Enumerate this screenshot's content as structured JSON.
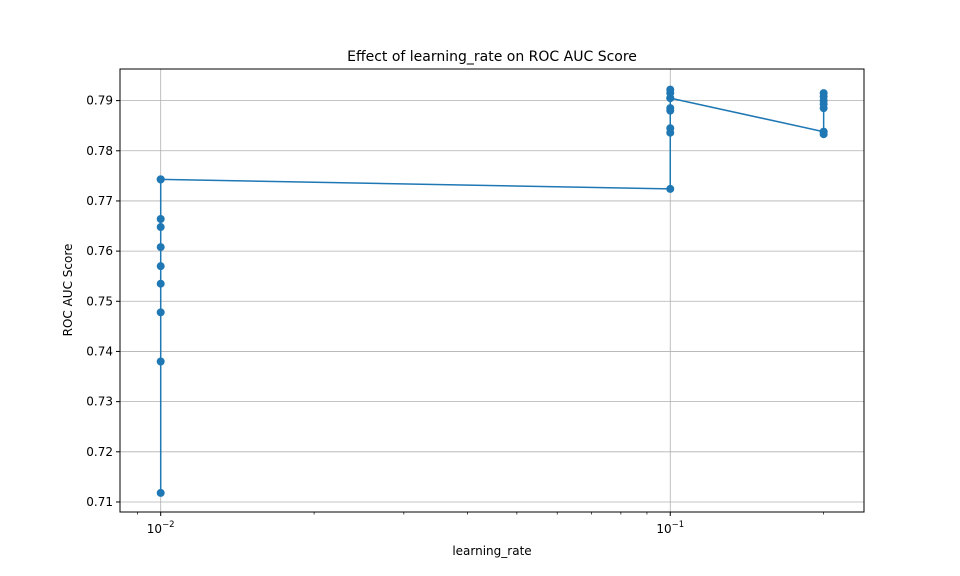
{
  "chart_data": {
    "type": "line",
    "title": "Effect of learning_rate on ROC AUC Score",
    "xlabel": "learning_rate",
    "ylabel": "ROC AUC Score",
    "xscale": "log",
    "grid": true,
    "xlim": [
      0.00832,
      0.24
    ],
    "ylim": [
      0.708,
      0.7963
    ],
    "x_ticks": [
      {
        "value": 0.01,
        "base": "10",
        "exp": "−2"
      },
      {
        "value": 0.1,
        "base": "10",
        "exp": "−1"
      }
    ],
    "y_ticks": [
      {
        "value": 0.71,
        "label": "0.71"
      },
      {
        "value": 0.72,
        "label": "0.72"
      },
      {
        "value": 0.73,
        "label": "0.73"
      },
      {
        "value": 0.74,
        "label": "0.74"
      },
      {
        "value": 0.75,
        "label": "0.75"
      },
      {
        "value": 0.76,
        "label": "0.76"
      },
      {
        "value": 0.77,
        "label": "0.77"
      },
      {
        "value": 0.78,
        "label": "0.78"
      },
      {
        "value": 0.79,
        "label": "0.79"
      }
    ],
    "series": [
      {
        "color": "#1f77b4",
        "x": [
          0.01,
          0.01,
          0.01,
          0.01,
          0.01,
          0.01,
          0.01,
          0.01,
          0.01,
          0.01,
          0.1,
          0.1,
          0.1,
          0.1,
          0.1,
          0.1,
          0.1,
          0.1,
          0.1,
          0.2,
          0.2,
          0.2,
          0.2,
          0.2,
          0.2,
          0.2,
          0.2
        ],
        "y": [
          0.7118,
          0.738,
          0.7478,
          0.7535,
          0.757,
          0.7608,
          0.7648,
          0.7664,
          0.7743,
          0.7743,
          0.7724,
          0.7836,
          0.7845,
          0.788,
          0.7885,
          0.7905,
          0.7915,
          0.7922,
          0.7905,
          0.7838,
          0.7833,
          0.7885,
          0.7893,
          0.79,
          0.7908,
          0.7915,
          0.7838
        ]
      }
    ]
  }
}
